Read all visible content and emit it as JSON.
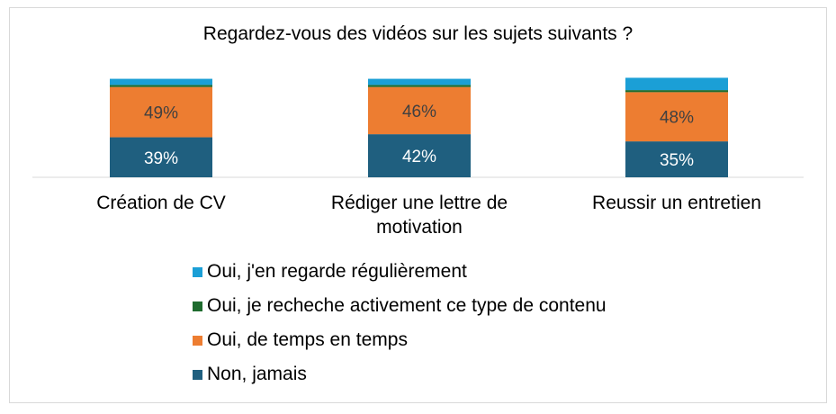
{
  "chart_data": {
    "type": "bar",
    "stacked": true,
    "title": "Regardez-vous des vidéos sur les sujets suivants ?",
    "categories": [
      "Création de CV",
      "Rédiger une lettre de motivation",
      "Reussir un entretien"
    ],
    "category_lines": [
      [
        "Création de CV"
      ],
      [
        "Rédiger une lettre de",
        "motivation"
      ],
      [
        "Reussir un entretien"
      ]
    ],
    "series": [
      {
        "name": "Non, jamais",
        "color": "#1f5f7f",
        "values": [
          39,
          42,
          35
        ],
        "labels": [
          "39%",
          "42%",
          "35%"
        ]
      },
      {
        "name": "Oui, de temps en temps",
        "color": "#ed7d31",
        "values": [
          49,
          46,
          48
        ],
        "labels": [
          "49%",
          "46%",
          "48%"
        ]
      },
      {
        "name": "Oui, je recheche activement ce type de contenu",
        "color": "#1e6b2e",
        "values": [
          2,
          2,
          2
        ],
        "labels": [
          "",
          "",
          ""
        ]
      },
      {
        "name": "Oui, j'en regarde régulièrement",
        "color": "#1b9fd6",
        "values": [
          6,
          6,
          12
        ],
        "labels": [
          "",
          "",
          ""
        ]
      }
    ],
    "legend_order": [
      3,
      2,
      1,
      0
    ],
    "ylim": [
      0,
      100
    ],
    "grid": false,
    "legend_position": "bottom"
  }
}
